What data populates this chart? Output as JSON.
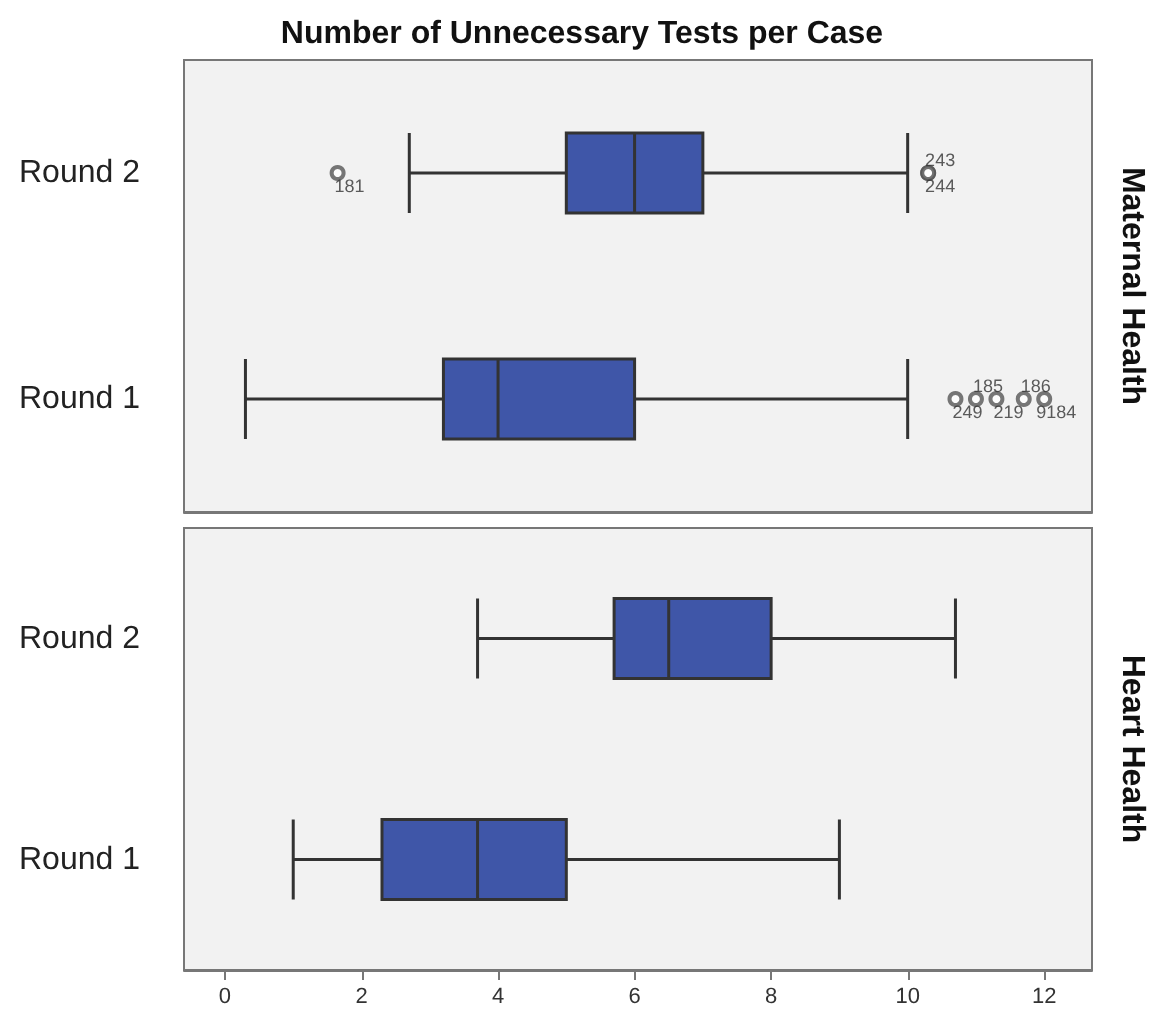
{
  "chart_data": [
    {
      "type": "box",
      "title": "Number of Unnecessary Tests per Case",
      "y2label": "Maternal Health",
      "orientation": "horizontal",
      "categories": [
        "Round 2",
        "Round 1"
      ],
      "color": "#3f56a8",
      "xlim": [
        -0.6,
        12.7
      ],
      "xticks": [
        0,
        2,
        4,
        6,
        8,
        10,
        12
      ],
      "tick_labels": "y",
      "grid": false,
      "legend": false,
      "boxes": [
        {
          "low": 2.7,
          "q1": 5.0,
          "median": 6.0,
          "q3": 7.0,
          "high": 10.0,
          "outliers": [
            1.65,
            10.3,
            10.3
          ]
        },
        {
          "low": 0.3,
          "q1": 3.2,
          "median": 4.0,
          "q3": 6.0,
          "high": 10.0,
          "outliers": [
            10.7,
            11.0,
            11.3,
            11.7,
            12.0
          ]
        }
      ],
      "annotations": [
        "181",
        "243",
        "244",
        "249",
        "185",
        "219",
        "186",
        "9184"
      ]
    },
    {
      "type": "box",
      "y2label": "Heart Health",
      "orientation": "horizontal",
      "categories": [
        "Round 2",
        "Round 1"
      ],
      "color": "#3f56a8",
      "xlim": [
        -0.6,
        12.7
      ],
      "xticks": [
        0,
        2,
        4,
        6,
        8,
        10,
        12
      ],
      "grid": false,
      "legend": false,
      "boxes": [
        {
          "low": 3.7,
          "q1": 5.7,
          "median": 6.5,
          "q3": 8.0,
          "high": 10.7
        },
        {
          "low": 1.0,
          "q1": 2.3,
          "median": 3.7,
          "q3": 5.0,
          "high": 9.0
        }
      ]
    }
  ]
}
